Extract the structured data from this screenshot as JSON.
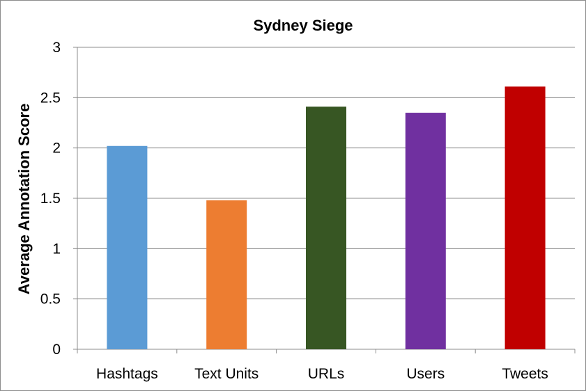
{
  "chart_data": {
    "type": "bar",
    "title": "Sydney Siege",
    "xlabel": "",
    "ylabel": "Average Annotation Score",
    "categories": [
      "Hashtags",
      "Text Units",
      "URLs",
      "Users",
      "Tweets"
    ],
    "values": [
      2.02,
      1.48,
      2.41,
      2.35,
      2.61
    ],
    "colors": [
      "#5b9bd5",
      "#ed7d31",
      "#375623",
      "#7030a0",
      "#c00000"
    ],
    "ylim": [
      0,
      3
    ],
    "yticks": [
      "0",
      "0.5",
      "1",
      "1.5",
      "2",
      "2.5",
      "3"
    ],
    "grid": true,
    "legend": "none"
  }
}
